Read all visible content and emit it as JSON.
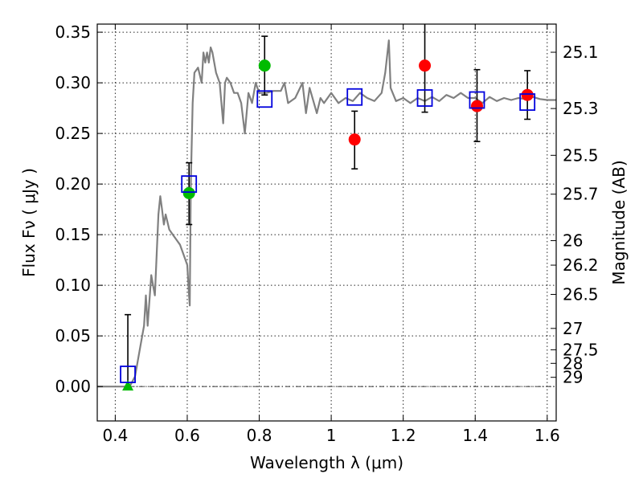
{
  "chart_data": {
    "type": "scatter",
    "title": "",
    "xlabel": "Wavelength  λ (μm)",
    "ylabel_left": "Flux  Fν  ( μJy )",
    "ylabel_right": "Magnitude (AB)",
    "xlim": [
      0.35,
      1.625
    ],
    "ylim": [
      -0.034,
      0.358
    ],
    "grid": true,
    "x_ticks": [
      0.4,
      0.6,
      0.8,
      1.0,
      1.2,
      1.4,
      1.6
    ],
    "x_tick_labels": [
      "0.4",
      "0.6",
      "0.8",
      "1",
      "1.2",
      "1.4",
      "1.6"
    ],
    "y_ticks": [
      0.0,
      0.05,
      0.1,
      0.15,
      0.2,
      0.25,
      0.3,
      0.35
    ],
    "y_tick_labels": [
      "0.00",
      "0.05",
      "0.10",
      "0.15",
      "0.20",
      "0.25",
      "0.30",
      "0.35"
    ],
    "right_ticks": [
      {
        "label": "25.1",
        "flux": 0.3302
      },
      {
        "label": "25.3",
        "flux": 0.2746
      },
      {
        "label": "25.5",
        "flux": 0.2284
      },
      {
        "label": "25.7",
        "flux": 0.19
      },
      {
        "label": "26",
        "flux": 0.1441
      },
      {
        "label": "26.2",
        "flux": 0.1199
      },
      {
        "label": "26.5",
        "flux": 0.091
      },
      {
        "label": "27",
        "flux": 0.0574
      },
      {
        "label": "27.5",
        "flux": 0.0363
      },
      {
        "label": "28",
        "flux": 0.0229
      },
      {
        "label": "29",
        "flux": 0.0091
      }
    ],
    "model_spectrum": {
      "color": "#808080",
      "points": [
        [
          0.35,
          0.0
        ],
        [
          0.44,
          0.0
        ],
        [
          0.455,
          0.01
        ],
        [
          0.47,
          0.04
        ],
        [
          0.48,
          0.06
        ],
        [
          0.485,
          0.09
        ],
        [
          0.49,
          0.06
        ],
        [
          0.5,
          0.11
        ],
        [
          0.505,
          0.1
        ],
        [
          0.51,
          0.09
        ],
        [
          0.52,
          0.17
        ],
        [
          0.525,
          0.188
        ],
        [
          0.53,
          0.175
        ],
        [
          0.535,
          0.16
        ],
        [
          0.54,
          0.17
        ],
        [
          0.55,
          0.155
        ],
        [
          0.56,
          0.15
        ],
        [
          0.57,
          0.145
        ],
        [
          0.58,
          0.14
        ],
        [
          0.59,
          0.13
        ],
        [
          0.6,
          0.12
        ],
        [
          0.605,
          0.09
        ],
        [
          0.607,
          0.08
        ],
        [
          0.61,
          0.2
        ],
        [
          0.615,
          0.28
        ],
        [
          0.62,
          0.31
        ],
        [
          0.63,
          0.315
        ],
        [
          0.64,
          0.3
        ],
        [
          0.645,
          0.33
        ],
        [
          0.65,
          0.32
        ],
        [
          0.655,
          0.33
        ],
        [
          0.66,
          0.32
        ],
        [
          0.665,
          0.335
        ],
        [
          0.67,
          0.33
        ],
        [
          0.68,
          0.31
        ],
        [
          0.69,
          0.3
        ],
        [
          0.7,
          0.26
        ],
        [
          0.705,
          0.3
        ],
        [
          0.71,
          0.305
        ],
        [
          0.72,
          0.3
        ],
        [
          0.73,
          0.29
        ],
        [
          0.74,
          0.29
        ],
        [
          0.75,
          0.28
        ],
        [
          0.76,
          0.25
        ],
        [
          0.77,
          0.29
        ],
        [
          0.78,
          0.28
        ],
        [
          0.79,
          0.3
        ],
        [
          0.8,
          0.29
        ],
        [
          0.82,
          0.29
        ],
        [
          0.84,
          0.292
        ],
        [
          0.86,
          0.292
        ],
        [
          0.87,
          0.3
        ],
        [
          0.88,
          0.28
        ],
        [
          0.9,
          0.285
        ],
        [
          0.92,
          0.3
        ],
        [
          0.93,
          0.27
        ],
        [
          0.94,
          0.295
        ],
        [
          0.96,
          0.27
        ],
        [
          0.97,
          0.285
        ],
        [
          0.98,
          0.28
        ],
        [
          1.0,
          0.29
        ],
        [
          1.02,
          0.28
        ],
        [
          1.04,
          0.285
        ],
        [
          1.06,
          0.282
        ],
        [
          1.08,
          0.29
        ],
        [
          1.1,
          0.285
        ],
        [
          1.12,
          0.282
        ],
        [
          1.14,
          0.29
        ],
        [
          1.15,
          0.31
        ],
        [
          1.16,
          0.342
        ],
        [
          1.165,
          0.295
        ],
        [
          1.18,
          0.282
        ],
        [
          1.2,
          0.285
        ],
        [
          1.22,
          0.28
        ],
        [
          1.24,
          0.285
        ],
        [
          1.26,
          0.282
        ],
        [
          1.28,
          0.286
        ],
        [
          1.3,
          0.282
        ],
        [
          1.32,
          0.288
        ],
        [
          1.34,
          0.285
        ],
        [
          1.36,
          0.29
        ],
        [
          1.38,
          0.285
        ],
        [
          1.4,
          0.285
        ],
        [
          1.42,
          0.28
        ],
        [
          1.44,
          0.286
        ],
        [
          1.46,
          0.282
        ],
        [
          1.48,
          0.285
        ],
        [
          1.5,
          0.283
        ],
        [
          1.52,
          0.285
        ],
        [
          1.54,
          0.284
        ],
        [
          1.56,
          0.286
        ],
        [
          1.58,
          0.284
        ],
        [
          1.6,
          0.283
        ],
        [
          1.625,
          0.283
        ]
      ]
    },
    "series": [
      {
        "marker": "triangle",
        "color": "#00bb00",
        "points": [
          {
            "x": 0.435,
            "y": 0.0
          }
        ]
      },
      {
        "marker": "circle",
        "color": "#00bb00",
        "points": [
          {
            "x": 0.605,
            "y": 0.191
          },
          {
            "x": 0.815,
            "y": 0.317
          }
        ]
      },
      {
        "marker": "circle",
        "color": "#ff0000",
        "points": [
          {
            "x": 1.065,
            "y": 0.244
          },
          {
            "x": 1.26,
            "y": 0.317
          },
          {
            "x": 1.405,
            "y": 0.277
          },
          {
            "x": 1.545,
            "y": 0.288
          }
        ]
      },
      {
        "marker": "square-open",
        "color": "#0000dd",
        "points": [
          {
            "x": 0.435,
            "y": 0.012
          },
          {
            "x": 0.605,
            "y": 0.2
          },
          {
            "x": 0.815,
            "y": 0.284
          },
          {
            "x": 1.065,
            "y": 0.286
          },
          {
            "x": 1.26,
            "y": 0.285
          },
          {
            "x": 1.405,
            "y": 0.283
          },
          {
            "x": 1.545,
            "y": 0.281
          }
        ]
      }
    ],
    "error_bars": [
      {
        "x": 0.435,
        "low": 0.0,
        "high": 0.071
      },
      {
        "x": 0.605,
        "low": 0.16,
        "high": 0.221
      },
      {
        "x": 0.815,
        "low": 0.288,
        "high": 0.346
      },
      {
        "x": 1.065,
        "low": 0.215,
        "high": 0.272
      },
      {
        "x": 1.26,
        "low": 0.271,
        "high": 0.36
      },
      {
        "x": 1.405,
        "low": 0.242,
        "high": 0.313
      },
      {
        "x": 1.545,
        "low": 0.264,
        "high": 0.312
      }
    ]
  }
}
